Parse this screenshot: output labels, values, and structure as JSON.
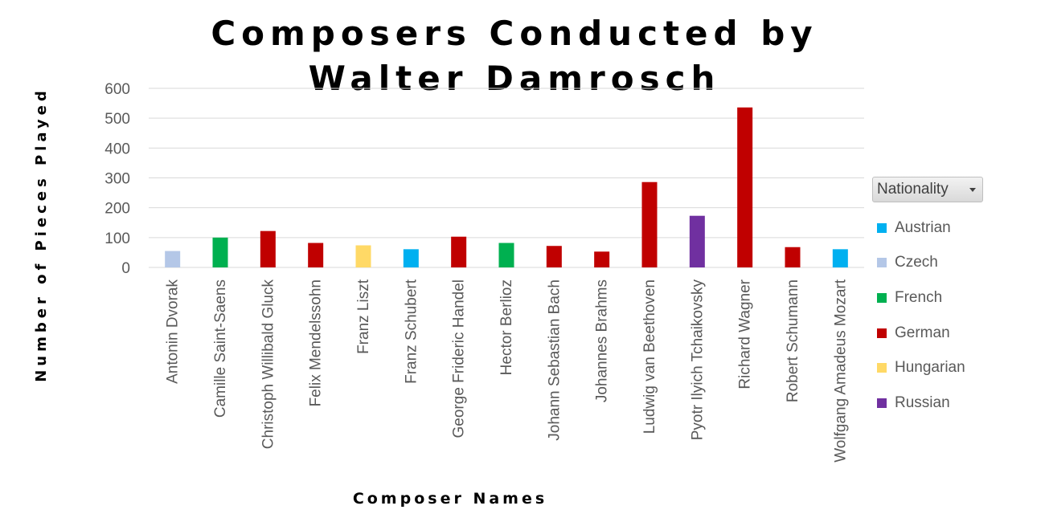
{
  "chart_data": {
    "type": "bar",
    "title_lines": [
      "Composers Conducted by",
      "Walter Damrosch"
    ],
    "xlabel": "Composer Names",
    "ylabel": "Number of Pieces Played",
    "ylim": [
      0,
      600
    ],
    "yticks": [
      0,
      100,
      200,
      300,
      400,
      500,
      600
    ],
    "grid": true,
    "legend_placement": "right",
    "legend_title": "Nationality",
    "categories": [
      "Antonin Dvorak",
      "Camille Saint-Saens",
      "Christoph Willibald Gluck",
      "Felix Mendelssohn",
      "Franz Liszt",
      "Franz Schubert",
      "George Frideric Handel",
      "Hector Berlioz",
      "Johann Sebastian Bach",
      "Johannes Brahms",
      "Ludwig van Beethoven",
      "Pyotr Ilyich Tchaikovsky",
      "Richard Wagner",
      "Robert Schumann",
      "Wolfgang Amadeus Mozart"
    ],
    "values": [
      55,
      100,
      122,
      82,
      74,
      61,
      103,
      82,
      72,
      53,
      286,
      173,
      536,
      68,
      61
    ],
    "nationality": [
      "Czech",
      "French",
      "German",
      "German",
      "Hungarian",
      "Austrian",
      "German",
      "French",
      "German",
      "German",
      "German",
      "Russian",
      "German",
      "German",
      "Austrian"
    ],
    "legend": [
      {
        "name": "Austrian",
        "color": "#00b0f0"
      },
      {
        "name": "Czech",
        "color": "#b4c7e7"
      },
      {
        "name": "French",
        "color": "#00b050"
      },
      {
        "name": "German",
        "color": "#c00000"
      },
      {
        "name": "Hungarian",
        "color": "#ffd966"
      },
      {
        "name": "Russian",
        "color": "#7030a0"
      }
    ]
  }
}
